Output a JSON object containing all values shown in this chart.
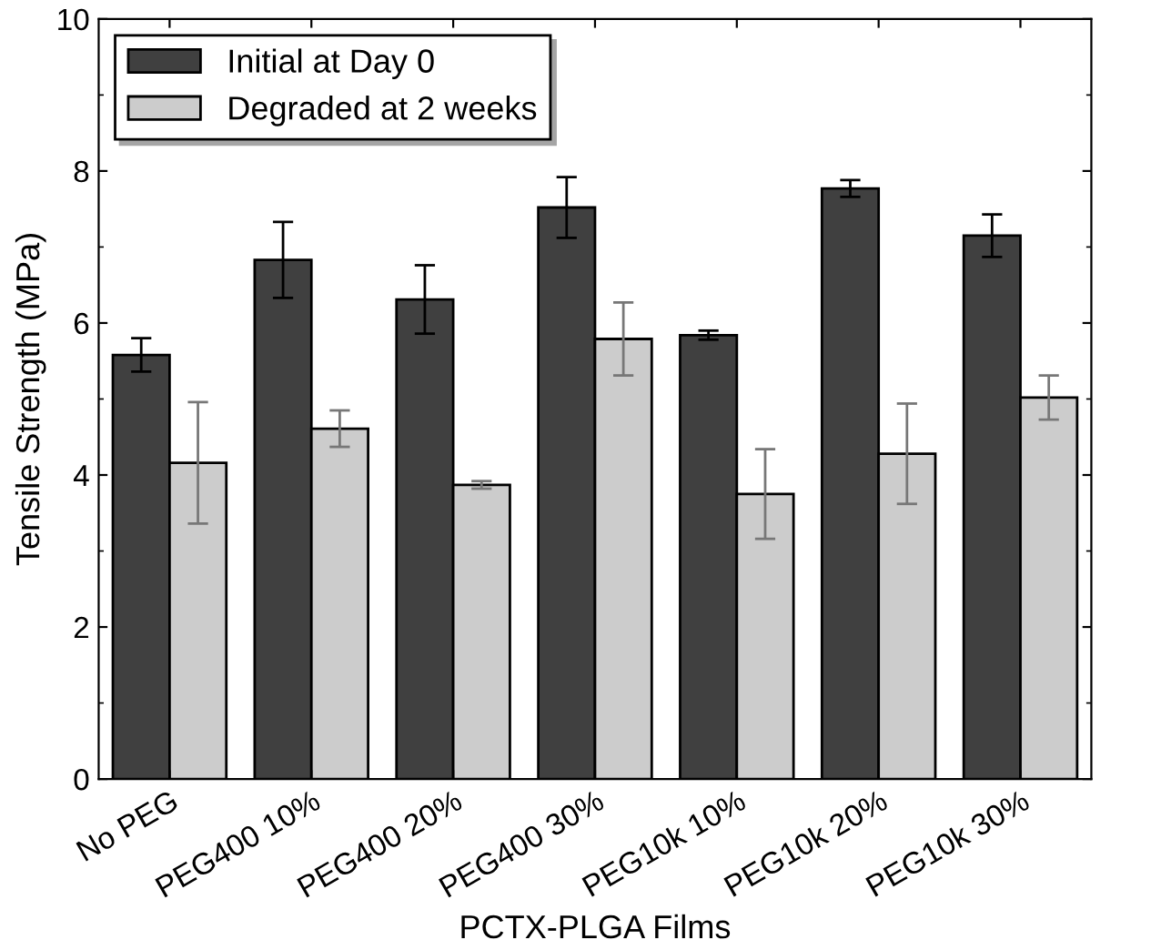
{
  "chart_data": {
    "type": "bar",
    "xlabel": "PCTX-PLGA Films",
    "ylabel": "Tensile Strength (MPa)",
    "categories": [
      "No PEG",
      "PEG400 10%",
      "PEG400 20%",
      "PEG400 30%",
      "PEG10k 10%",
      "PEG10k 20%",
      "PEG10k 30%"
    ],
    "series": [
      {
        "name": "Initial at Day 0",
        "color": "#404040",
        "values": [
          5.58,
          6.83,
          6.31,
          7.52,
          5.84,
          7.77,
          7.15
        ],
        "errors": [
          0.22,
          0.5,
          0.45,
          0.4,
          0.06,
          0.11,
          0.28
        ]
      },
      {
        "name": "Degraded at 2 weeks",
        "color": "#cccccc",
        "values": [
          4.16,
          4.61,
          3.87,
          5.79,
          3.75,
          4.28,
          5.02
        ],
        "errors": [
          0.8,
          0.24,
          0.05,
          0.48,
          0.59,
          0.66,
          0.29
        ]
      }
    ],
    "ylim": [
      0,
      10
    ],
    "yticks": [
      0,
      2,
      4,
      6,
      8,
      10
    ],
    "grid": false,
    "legend": "top left"
  }
}
